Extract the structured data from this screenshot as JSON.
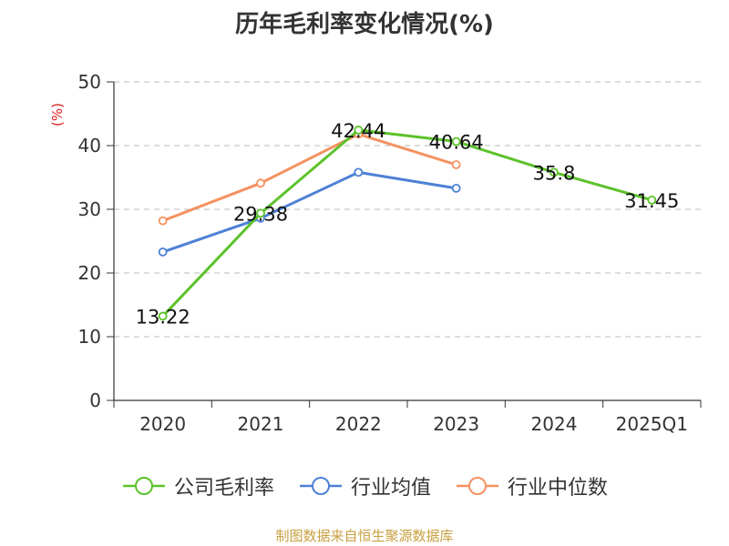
{
  "chart_data": {
    "type": "line",
    "title": "历年毛利率变化情况(%)",
    "ylabel": "(%)",
    "categories": [
      "2020",
      "2021",
      "2022",
      "2023",
      "2024",
      "2025Q1"
    ],
    "ylim": [
      0,
      50
    ],
    "yticks": [
      0,
      10,
      20,
      30,
      40,
      50
    ],
    "grid": true,
    "legend_position": "bottom",
    "series": [
      {
        "name": "公司毛利率",
        "color": "#5cc22a",
        "values": [
          13.22,
          29.38,
          42.44,
          40.64,
          35.8,
          31.45
        ],
        "labels": [
          "13.22",
          "29.38",
          "42.44",
          "40.64",
          "35.8",
          "31.45"
        ]
      },
      {
        "name": "行业均值",
        "color": "#4e80d6",
        "values": [
          23.3,
          28.6,
          35.8,
          33.3,
          null,
          null
        ]
      },
      {
        "name": "行业中位数",
        "color": "#f59160",
        "values": [
          28.2,
          34.1,
          41.8,
          37.0,
          null,
          null
        ]
      }
    ]
  },
  "source": "制图数据来自恒生聚源数据库"
}
